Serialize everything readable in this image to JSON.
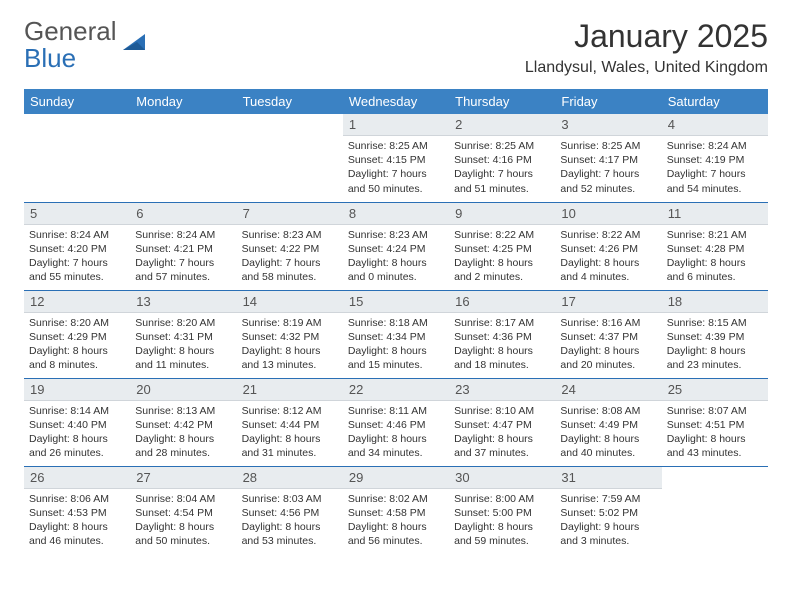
{
  "logo": {
    "text1": "General",
    "text2": "Blue"
  },
  "title": "January 2025",
  "location": "Llandysul, Wales, United Kingdom",
  "colors": {
    "header_bg": "#3b82c4",
    "daynum_bg": "#e8ecef",
    "row_border": "#2a6fb5",
    "logo_accent": "#2a6fb5"
  },
  "weekdays": [
    "Sunday",
    "Monday",
    "Tuesday",
    "Wednesday",
    "Thursday",
    "Friday",
    "Saturday"
  ],
  "weeks": [
    [
      null,
      null,
      null,
      {
        "n": "1",
        "sunrise": "Sunrise: 8:25 AM",
        "sunset": "Sunset: 4:15 PM",
        "daylight1": "Daylight: 7 hours",
        "daylight2": "and 50 minutes."
      },
      {
        "n": "2",
        "sunrise": "Sunrise: 8:25 AM",
        "sunset": "Sunset: 4:16 PM",
        "daylight1": "Daylight: 7 hours",
        "daylight2": "and 51 minutes."
      },
      {
        "n": "3",
        "sunrise": "Sunrise: 8:25 AM",
        "sunset": "Sunset: 4:17 PM",
        "daylight1": "Daylight: 7 hours",
        "daylight2": "and 52 minutes."
      },
      {
        "n": "4",
        "sunrise": "Sunrise: 8:24 AM",
        "sunset": "Sunset: 4:19 PM",
        "daylight1": "Daylight: 7 hours",
        "daylight2": "and 54 minutes."
      }
    ],
    [
      {
        "n": "5",
        "sunrise": "Sunrise: 8:24 AM",
        "sunset": "Sunset: 4:20 PM",
        "daylight1": "Daylight: 7 hours",
        "daylight2": "and 55 minutes."
      },
      {
        "n": "6",
        "sunrise": "Sunrise: 8:24 AM",
        "sunset": "Sunset: 4:21 PM",
        "daylight1": "Daylight: 7 hours",
        "daylight2": "and 57 minutes."
      },
      {
        "n": "7",
        "sunrise": "Sunrise: 8:23 AM",
        "sunset": "Sunset: 4:22 PM",
        "daylight1": "Daylight: 7 hours",
        "daylight2": "and 58 minutes."
      },
      {
        "n": "8",
        "sunrise": "Sunrise: 8:23 AM",
        "sunset": "Sunset: 4:24 PM",
        "daylight1": "Daylight: 8 hours",
        "daylight2": "and 0 minutes."
      },
      {
        "n": "9",
        "sunrise": "Sunrise: 8:22 AM",
        "sunset": "Sunset: 4:25 PM",
        "daylight1": "Daylight: 8 hours",
        "daylight2": "and 2 minutes."
      },
      {
        "n": "10",
        "sunrise": "Sunrise: 8:22 AM",
        "sunset": "Sunset: 4:26 PM",
        "daylight1": "Daylight: 8 hours",
        "daylight2": "and 4 minutes."
      },
      {
        "n": "11",
        "sunrise": "Sunrise: 8:21 AM",
        "sunset": "Sunset: 4:28 PM",
        "daylight1": "Daylight: 8 hours",
        "daylight2": "and 6 minutes."
      }
    ],
    [
      {
        "n": "12",
        "sunrise": "Sunrise: 8:20 AM",
        "sunset": "Sunset: 4:29 PM",
        "daylight1": "Daylight: 8 hours",
        "daylight2": "and 8 minutes."
      },
      {
        "n": "13",
        "sunrise": "Sunrise: 8:20 AM",
        "sunset": "Sunset: 4:31 PM",
        "daylight1": "Daylight: 8 hours",
        "daylight2": "and 11 minutes."
      },
      {
        "n": "14",
        "sunrise": "Sunrise: 8:19 AM",
        "sunset": "Sunset: 4:32 PM",
        "daylight1": "Daylight: 8 hours",
        "daylight2": "and 13 minutes."
      },
      {
        "n": "15",
        "sunrise": "Sunrise: 8:18 AM",
        "sunset": "Sunset: 4:34 PM",
        "daylight1": "Daylight: 8 hours",
        "daylight2": "and 15 minutes."
      },
      {
        "n": "16",
        "sunrise": "Sunrise: 8:17 AM",
        "sunset": "Sunset: 4:36 PM",
        "daylight1": "Daylight: 8 hours",
        "daylight2": "and 18 minutes."
      },
      {
        "n": "17",
        "sunrise": "Sunrise: 8:16 AM",
        "sunset": "Sunset: 4:37 PM",
        "daylight1": "Daylight: 8 hours",
        "daylight2": "and 20 minutes."
      },
      {
        "n": "18",
        "sunrise": "Sunrise: 8:15 AM",
        "sunset": "Sunset: 4:39 PM",
        "daylight1": "Daylight: 8 hours",
        "daylight2": "and 23 minutes."
      }
    ],
    [
      {
        "n": "19",
        "sunrise": "Sunrise: 8:14 AM",
        "sunset": "Sunset: 4:40 PM",
        "daylight1": "Daylight: 8 hours",
        "daylight2": "and 26 minutes."
      },
      {
        "n": "20",
        "sunrise": "Sunrise: 8:13 AM",
        "sunset": "Sunset: 4:42 PM",
        "daylight1": "Daylight: 8 hours",
        "daylight2": "and 28 minutes."
      },
      {
        "n": "21",
        "sunrise": "Sunrise: 8:12 AM",
        "sunset": "Sunset: 4:44 PM",
        "daylight1": "Daylight: 8 hours",
        "daylight2": "and 31 minutes."
      },
      {
        "n": "22",
        "sunrise": "Sunrise: 8:11 AM",
        "sunset": "Sunset: 4:46 PM",
        "daylight1": "Daylight: 8 hours",
        "daylight2": "and 34 minutes."
      },
      {
        "n": "23",
        "sunrise": "Sunrise: 8:10 AM",
        "sunset": "Sunset: 4:47 PM",
        "daylight1": "Daylight: 8 hours",
        "daylight2": "and 37 minutes."
      },
      {
        "n": "24",
        "sunrise": "Sunrise: 8:08 AM",
        "sunset": "Sunset: 4:49 PM",
        "daylight1": "Daylight: 8 hours",
        "daylight2": "and 40 minutes."
      },
      {
        "n": "25",
        "sunrise": "Sunrise: 8:07 AM",
        "sunset": "Sunset: 4:51 PM",
        "daylight1": "Daylight: 8 hours",
        "daylight2": "and 43 minutes."
      }
    ],
    [
      {
        "n": "26",
        "sunrise": "Sunrise: 8:06 AM",
        "sunset": "Sunset: 4:53 PM",
        "daylight1": "Daylight: 8 hours",
        "daylight2": "and 46 minutes."
      },
      {
        "n": "27",
        "sunrise": "Sunrise: 8:04 AM",
        "sunset": "Sunset: 4:54 PM",
        "daylight1": "Daylight: 8 hours",
        "daylight2": "and 50 minutes."
      },
      {
        "n": "28",
        "sunrise": "Sunrise: 8:03 AM",
        "sunset": "Sunset: 4:56 PM",
        "daylight1": "Daylight: 8 hours",
        "daylight2": "and 53 minutes."
      },
      {
        "n": "29",
        "sunrise": "Sunrise: 8:02 AM",
        "sunset": "Sunset: 4:58 PM",
        "daylight1": "Daylight: 8 hours",
        "daylight2": "and 56 minutes."
      },
      {
        "n": "30",
        "sunrise": "Sunrise: 8:00 AM",
        "sunset": "Sunset: 5:00 PM",
        "daylight1": "Daylight: 8 hours",
        "daylight2": "and 59 minutes."
      },
      {
        "n": "31",
        "sunrise": "Sunrise: 7:59 AM",
        "sunset": "Sunset: 5:02 PM",
        "daylight1": "Daylight: 9 hours",
        "daylight2": "and 3 minutes."
      },
      null
    ]
  ]
}
